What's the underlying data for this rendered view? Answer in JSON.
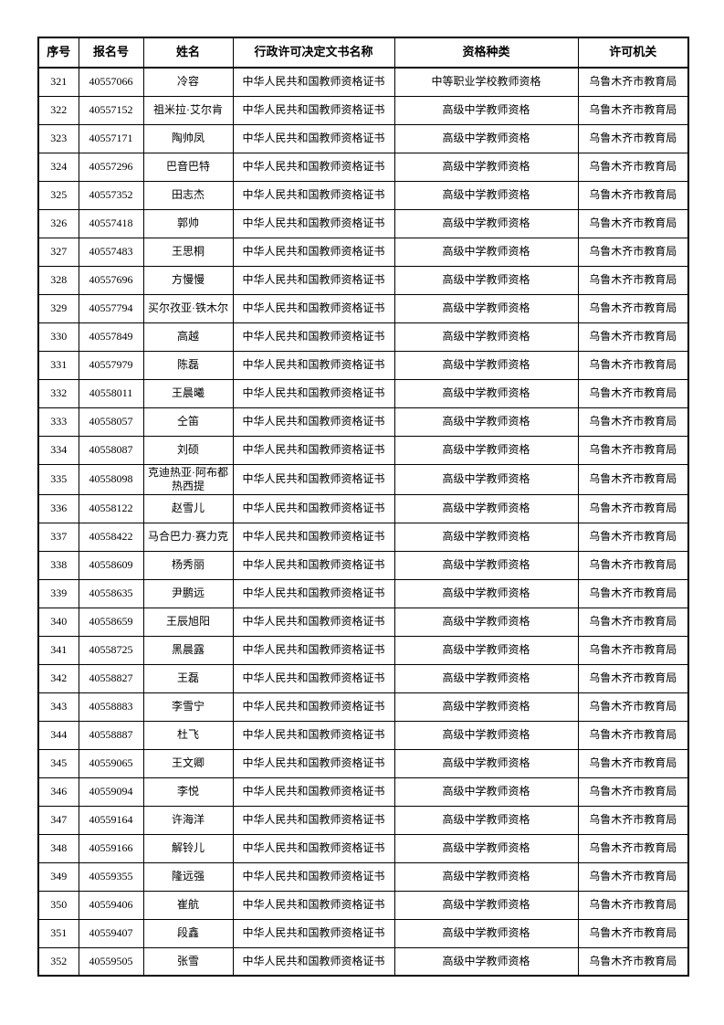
{
  "table": {
    "headers": [
      "序号",
      "报名号",
      "姓名",
      "行政许可决定文书名称",
      "资格种类",
      "许可机关"
    ],
    "rows": [
      [
        "321",
        "40557066",
        "冷容",
        "中华人民共和国教师资格证书",
        "中等职业学校教师资格",
        "乌鲁木齐市教育局"
      ],
      [
        "322",
        "40557152",
        "祖米拉·艾尔肯",
        "中华人民共和国教师资格证书",
        "高级中学教师资格",
        "乌鲁木齐市教育局"
      ],
      [
        "323",
        "40557171",
        "陶帅凤",
        "中华人民共和国教师资格证书",
        "高级中学教师资格",
        "乌鲁木齐市教育局"
      ],
      [
        "324",
        "40557296",
        "巴音巴特",
        "中华人民共和国教师资格证书",
        "高级中学教师资格",
        "乌鲁木齐市教育局"
      ],
      [
        "325",
        "40557352",
        "田志杰",
        "中华人民共和国教师资格证书",
        "高级中学教师资格",
        "乌鲁木齐市教育局"
      ],
      [
        "326",
        "40557418",
        "郭帅",
        "中华人民共和国教师资格证书",
        "高级中学教师资格",
        "乌鲁木齐市教育局"
      ],
      [
        "327",
        "40557483",
        "王思桐",
        "中华人民共和国教师资格证书",
        "高级中学教师资格",
        "乌鲁木齐市教育局"
      ],
      [
        "328",
        "40557696",
        "方慢慢",
        "中华人民共和国教师资格证书",
        "高级中学教师资格",
        "乌鲁木齐市教育局"
      ],
      [
        "329",
        "40557794",
        "买尔孜亚·铁木尔",
        "中华人民共和国教师资格证书",
        "高级中学教师资格",
        "乌鲁木齐市教育局"
      ],
      [
        "330",
        "40557849",
        "高越",
        "中华人民共和国教师资格证书",
        "高级中学教师资格",
        "乌鲁木齐市教育局"
      ],
      [
        "331",
        "40557979",
        "陈磊",
        "中华人民共和国教师资格证书",
        "高级中学教师资格",
        "乌鲁木齐市教育局"
      ],
      [
        "332",
        "40558011",
        "王晨曦",
        "中华人民共和国教师资格证书",
        "高级中学教师资格",
        "乌鲁木齐市教育局"
      ],
      [
        "333",
        "40558057",
        "仝笛",
        "中华人民共和国教师资格证书",
        "高级中学教师资格",
        "乌鲁木齐市教育局"
      ],
      [
        "334",
        "40558087",
        "刘硕",
        "中华人民共和国教师资格证书",
        "高级中学教师资格",
        "乌鲁木齐市教育局"
      ],
      [
        "335",
        "40558098",
        "克迪热亚·阿布都热西提",
        "中华人民共和国教师资格证书",
        "高级中学教师资格",
        "乌鲁木齐市教育局"
      ],
      [
        "336",
        "40558122",
        "赵雪儿",
        "中华人民共和国教师资格证书",
        "高级中学教师资格",
        "乌鲁木齐市教育局"
      ],
      [
        "337",
        "40558422",
        "马合巴力·赛力克",
        "中华人民共和国教师资格证书",
        "高级中学教师资格",
        "乌鲁木齐市教育局"
      ],
      [
        "338",
        "40558609",
        "杨秀丽",
        "中华人民共和国教师资格证书",
        "高级中学教师资格",
        "乌鲁木齐市教育局"
      ],
      [
        "339",
        "40558635",
        "尹鹏远",
        "中华人民共和国教师资格证书",
        "高级中学教师资格",
        "乌鲁木齐市教育局"
      ],
      [
        "340",
        "40558659",
        "王辰旭阳",
        "中华人民共和国教师资格证书",
        "高级中学教师资格",
        "乌鲁木齐市教育局"
      ],
      [
        "341",
        "40558725",
        "黑晨露",
        "中华人民共和国教师资格证书",
        "高级中学教师资格",
        "乌鲁木齐市教育局"
      ],
      [
        "342",
        "40558827",
        "王磊",
        "中华人民共和国教师资格证书",
        "高级中学教师资格",
        "乌鲁木齐市教育局"
      ],
      [
        "343",
        "40558883",
        "李雪宁",
        "中华人民共和国教师资格证书",
        "高级中学教师资格",
        "乌鲁木齐市教育局"
      ],
      [
        "344",
        "40558887",
        "杜飞",
        "中华人民共和国教师资格证书",
        "高级中学教师资格",
        "乌鲁木齐市教育局"
      ],
      [
        "345",
        "40559065",
        "王文卿",
        "中华人民共和国教师资格证书",
        "高级中学教师资格",
        "乌鲁木齐市教育局"
      ],
      [
        "346",
        "40559094",
        "李悦",
        "中华人民共和国教师资格证书",
        "高级中学教师资格",
        "乌鲁木齐市教育局"
      ],
      [
        "347",
        "40559164",
        "许海洋",
        "中华人民共和国教师资格证书",
        "高级中学教师资格",
        "乌鲁木齐市教育局"
      ],
      [
        "348",
        "40559166",
        "解铃儿",
        "中华人民共和国教师资格证书",
        "高级中学教师资格",
        "乌鲁木齐市教育局"
      ],
      [
        "349",
        "40559355",
        "隆远强",
        "中华人民共和国教师资格证书",
        "高级中学教师资格",
        "乌鲁木齐市教育局"
      ],
      [
        "350",
        "40559406",
        "崔航",
        "中华人民共和国教师资格证书",
        "高级中学教师资格",
        "乌鲁木齐市教育局"
      ],
      [
        "351",
        "40559407",
        "段鑫",
        "中华人民共和国教师资格证书",
        "高级中学教师资格",
        "乌鲁木齐市教育局"
      ],
      [
        "352",
        "40559505",
        "张雪",
        "中华人民共和国教师资格证书",
        "高级中学教师资格",
        "乌鲁木齐市教育局"
      ]
    ],
    "column_keys": [
      "index",
      "registration-number",
      "name",
      "license-document-name",
      "qualification-type",
      "licensing-authority"
    ]
  }
}
